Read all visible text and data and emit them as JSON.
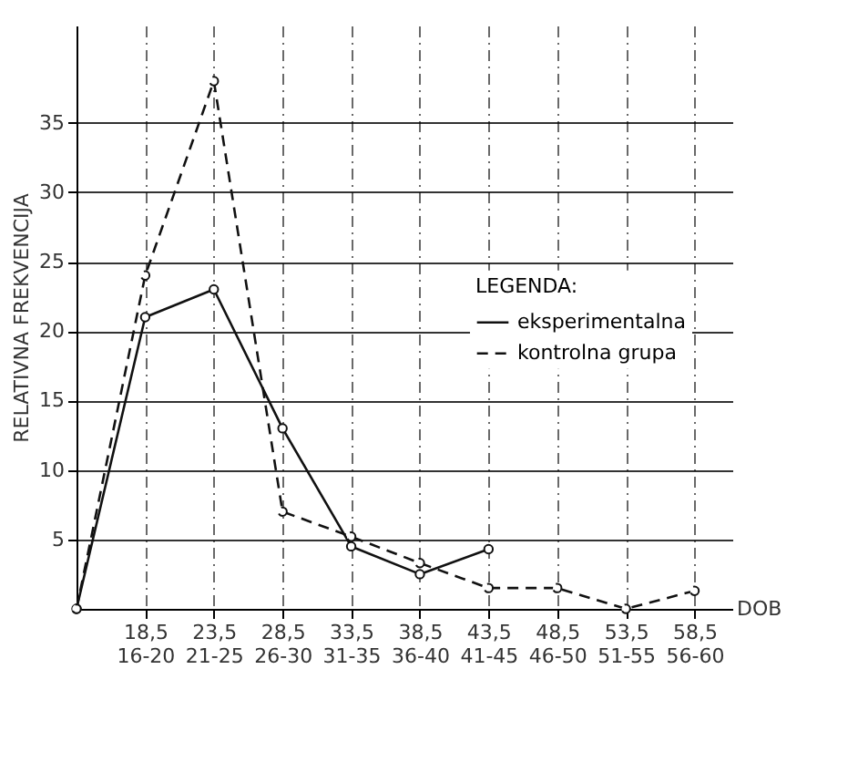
{
  "chart_data": {
    "type": "line",
    "ylabel": "RELATIVNA FREKVENCIJA",
    "xlabel": "DOB",
    "legend_title": "LEGENDA:",
    "categories": [
      null,
      "18,5 16-20",
      "23,5 21-25",
      "28,5 26-30",
      "33,5 31-35",
      "38,5 36-40",
      "43,5 41-45",
      "48,5 46-50",
      "53,5 51-55",
      "58,5 56-60"
    ],
    "ylim": [
      0,
      42
    ],
    "yticks": [
      5,
      10,
      15,
      20,
      25,
      30,
      35
    ],
    "grid": true,
    "legend": "right",
    "marker": "circle",
    "series": [
      {
        "name": "eksperimentalna",
        "color": "#111111",
        "line_style": "solid",
        "values": [
          0,
          21,
          23,
          13,
          4.5,
          2.5,
          4.3,
          null,
          null,
          null
        ]
      },
      {
        "name": "kontrolna grupa",
        "color": "#111111",
        "line_style": "dashed",
        "values": [
          0,
          24,
          38,
          7,
          5.2,
          3.3,
          1.5,
          1.5,
          0,
          1.3
        ]
      }
    ]
  }
}
